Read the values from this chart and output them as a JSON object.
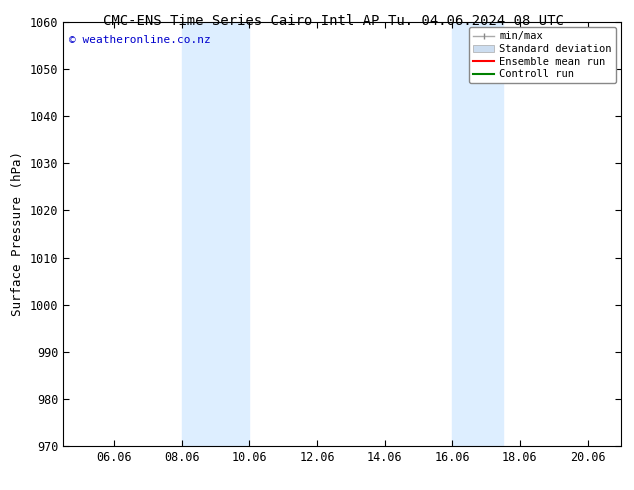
{
  "title": "CMC-ENS Time Series Cairo Intl AP",
  "title2": "Tu. 04.06.2024 08 UTC",
  "ylabel": "Surface Pressure (hPa)",
  "ylim": [
    970,
    1060
  ],
  "yticks": [
    970,
    980,
    990,
    1000,
    1010,
    1020,
    1030,
    1040,
    1050,
    1060
  ],
  "xlim_start": 4.5,
  "xlim_end": 21.0,
  "xtick_labels": [
    "06.06",
    "08.06",
    "10.06",
    "12.06",
    "14.06",
    "16.06",
    "18.06",
    "20.06"
  ],
  "xtick_positions": [
    6,
    8,
    10,
    12,
    14,
    16,
    18,
    20
  ],
  "shade_bands": [
    {
      "x_start": 8.0,
      "x_end": 10.0
    },
    {
      "x_start": 16.0,
      "x_end": 17.5
    }
  ],
  "shade_color": "#ddeeff",
  "background_color": "#ffffff",
  "watermark_text": "© weatheronline.co.nz",
  "watermark_color": "#0000cc",
  "watermark_fontsize": 8,
  "legend_items": [
    {
      "label": "min/max",
      "color": "#aaaaaa",
      "lw": 1.0
    },
    {
      "label": "Standard deviation",
      "color": "#ccddf0",
      "lw": 6
    },
    {
      "label": "Ensemble mean run",
      "color": "#ff0000",
      "lw": 1.5
    },
    {
      "label": "Controll run",
      "color": "#008000",
      "lw": 1.5
    }
  ],
  "title_fontsize": 10,
  "axis_label_fontsize": 9,
  "tick_fontsize": 8.5
}
